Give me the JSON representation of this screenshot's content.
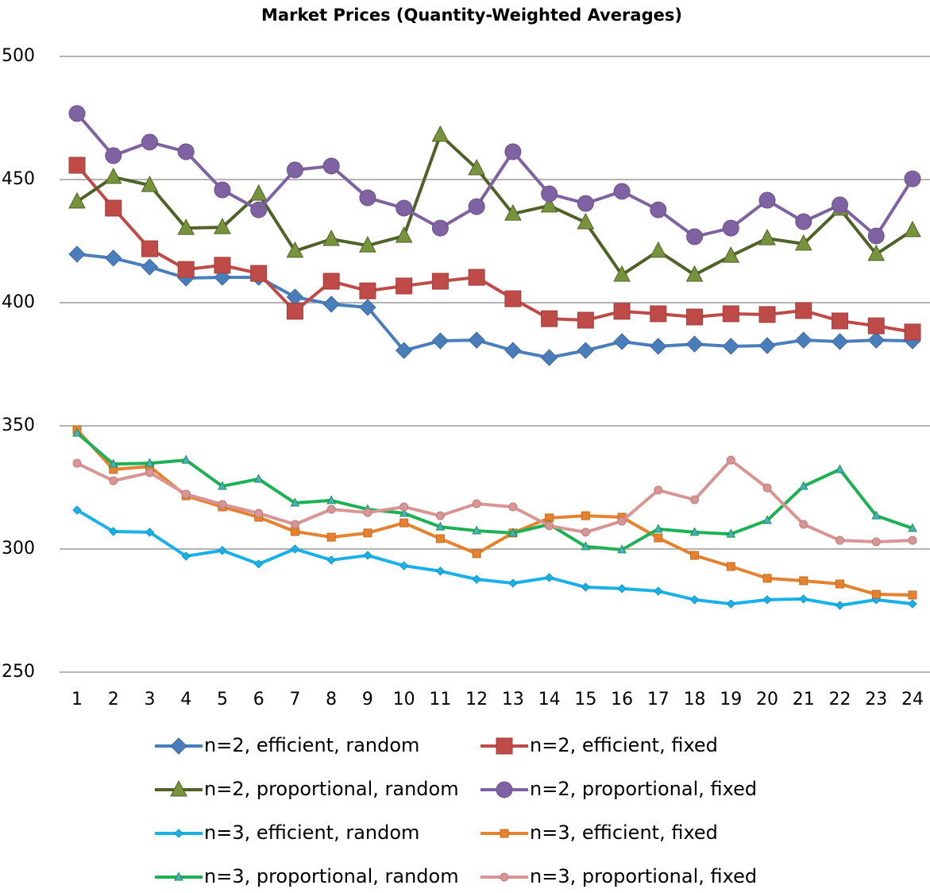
{
  "chart_data": {
    "type": "line",
    "title": "Market Prices (Quantity-Weighted Averages)",
    "categories": [
      1,
      2,
      3,
      4,
      5,
      6,
      7,
      8,
      9,
      10,
      11,
      12,
      13,
      14,
      15,
      16,
      17,
      18,
      19,
      20,
      21,
      22,
      23,
      24
    ],
    "ylim": [
      250,
      500
    ],
    "yticks": [
      250,
      300,
      350,
      400,
      450,
      500
    ],
    "grid": true,
    "series": [
      {
        "name": "n=2, efficient, random",
        "color": "#4a7ebb",
        "marker": "diamond",
        "values": [
          419.7,
          418.1,
          414.5,
          410,
          410.3,
          410.3,
          402.3,
          399.4,
          398.1,
          380.6,
          384.5,
          384.8,
          380.6,
          377.7,
          380.6,
          384.2,
          382.3,
          383.2,
          382.3,
          382.6,
          384.8,
          384.2,
          384.8,
          384.5
        ]
      },
      {
        "name": "n=2, efficient, fixed",
        "color": "#be4b48",
        "marker": "square",
        "values": [
          455.8,
          438.4,
          421.9,
          413.5,
          415.2,
          411.9,
          396.5,
          408.7,
          404.8,
          406.8,
          408.7,
          410.3,
          401.6,
          393.5,
          392.9,
          396.5,
          395.5,
          394.2,
          395.5,
          395.2,
          396.8,
          392.6,
          390.6,
          388.1
        ]
      },
      {
        "name": "n=2, proportional, random",
        "color": "#4f6228",
        "marker": "triangle",
        "values": [
          441,
          451,
          447.7,
          430.3,
          430.6,
          444.2,
          421,
          425.8,
          423.2,
          427.1,
          468.1,
          454.5,
          436.1,
          439.4,
          432.6,
          411.3,
          421,
          411.3,
          419,
          426.1,
          423.9,
          438.1,
          419.7,
          429.4
        ]
      },
      {
        "name": "n=2, proportional, fixed",
        "color": "#7e62a1",
        "marker": "circle",
        "values": [
          476.8,
          459.7,
          465.2,
          461.3,
          445.8,
          437.7,
          453.9,
          455.5,
          442.6,
          438.4,
          430.3,
          439,
          461.3,
          444.2,
          440.3,
          445.2,
          437.7,
          426.8,
          430.3,
          441.6,
          432.9,
          439.7,
          427.1,
          450.3
        ]
      },
      {
        "name": "n=3, efficient, random",
        "color": "#1ab0e8",
        "marker": "small-diamond",
        "values": [
          315.8,
          307.1,
          306.8,
          297.1,
          299.4,
          293.9,
          300,
          295.5,
          297.4,
          293.2,
          291,
          287.7,
          286.1,
          288.4,
          284.5,
          283.9,
          282.9,
          279.4,
          277.7,
          279.4,
          279.7,
          277.1,
          279.4,
          277.7
        ]
      },
      {
        "name": "n=3, efficient, fixed",
        "color": "#e5812f",
        "marker": "small-square",
        "values": [
          348.4,
          332.3,
          333.5,
          321.6,
          317.1,
          312.9,
          307.1,
          304.8,
          306.5,
          310.6,
          304.2,
          298.1,
          306.5,
          312.6,
          313.5,
          312.9,
          304.5,
          297.4,
          292.9,
          288.1,
          287.1,
          285.8,
          281.6,
          281.3
        ]
      },
      {
        "name": "n=3, proportional, random",
        "color": "#1db154",
        "marker": "small-triangle",
        "values": [
          347.1,
          334.5,
          334.8,
          336.1,
          325.5,
          328.4,
          318.7,
          319.7,
          316.1,
          314.5,
          309,
          307.4,
          306.5,
          310,
          301,
          299.7,
          308.1,
          306.8,
          306.1,
          311.6,
          325.5,
          332.3,
          313.5,
          308.4
        ]
      },
      {
        "name": "n=3, proportional, fixed",
        "color": "#d99594",
        "marker": "small-circle",
        "values": [
          334.8,
          327.7,
          331,
          322.3,
          318.1,
          314.5,
          310,
          316.1,
          314.8,
          317.1,
          313.5,
          318.4,
          317.1,
          309.4,
          306.8,
          311.3,
          323.9,
          320,
          336.1,
          324.8,
          310,
          303.5,
          302.9,
          303.5
        ]
      }
    ]
  }
}
